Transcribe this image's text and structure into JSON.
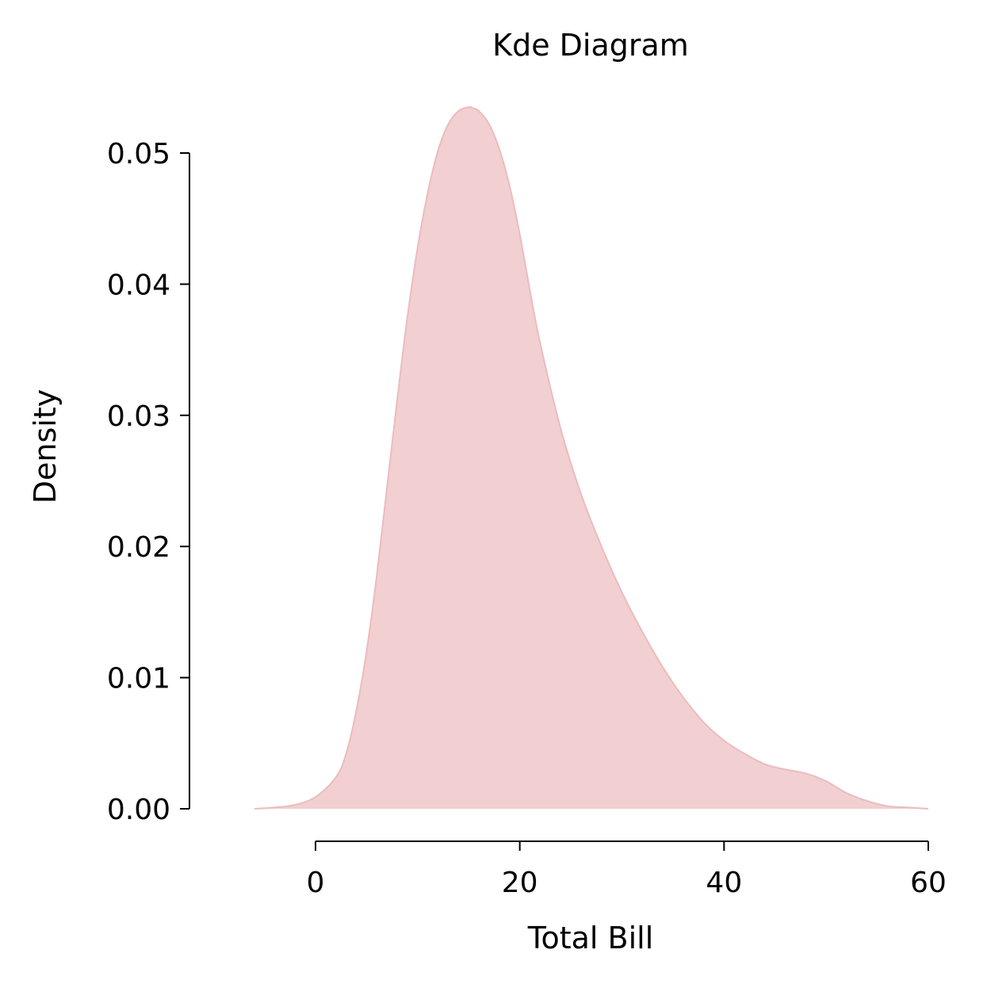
{
  "chart_data": {
    "type": "area",
    "title": "Kde Diagram",
    "xlabel": "Total Bill",
    "ylabel": "Density",
    "xlim": [
      -7,
      60
    ],
    "ylim": [
      0,
      0.053
    ],
    "x_ticks": [
      0,
      20,
      40,
      60
    ],
    "x_tick_labels": [
      "0",
      "20",
      "40",
      "60"
    ],
    "y_ticks": [
      0,
      0.01,
      0.02,
      0.03,
      0.04,
      0.05
    ],
    "y_tick_labels": [
      "0.00",
      "0.01",
      "0.02",
      "0.03",
      "0.04",
      "0.05"
    ],
    "grid": false,
    "fill_color": "#f2cfd0",
    "line_color": "#ebbcbe",
    "series": [
      {
        "x": [
          -6.0,
          -4.0,
          -2.0,
          0.0,
          2.0,
          3.0,
          4.0,
          5.0,
          6.0,
          7.0,
          8.0,
          9.0,
          10.0,
          11.0,
          12.0,
          13.0,
          14.0,
          15.0,
          15.5,
          16.0,
          17.0,
          18.0,
          19.0,
          20.0,
          21.0,
          22.0,
          24.0,
          26.0,
          28.0,
          30.0,
          32.0,
          34.0,
          36.0,
          38.0,
          40.0,
          42.0,
          44.0,
          46.0,
          48.0,
          50.0,
          52.0,
          54.0,
          56.0,
          58.0,
          60.0
        ],
        "y": [
          0.0,
          0.0001,
          0.0003,
          0.0009,
          0.0024,
          0.0042,
          0.0075,
          0.012,
          0.0178,
          0.0245,
          0.0312,
          0.0375,
          0.0428,
          0.047,
          0.0502,
          0.0522,
          0.0532,
          0.0535,
          0.0534,
          0.0532,
          0.0522,
          0.0503,
          0.0475,
          0.0438,
          0.0395,
          0.0355,
          0.029,
          0.024,
          0.02,
          0.0165,
          0.0135,
          0.0108,
          0.0085,
          0.0066,
          0.0052,
          0.0042,
          0.0034,
          0.003,
          0.0027,
          0.0021,
          0.0012,
          0.0006,
          0.0002,
          0.0001,
          0.0
        ]
      }
    ]
  }
}
